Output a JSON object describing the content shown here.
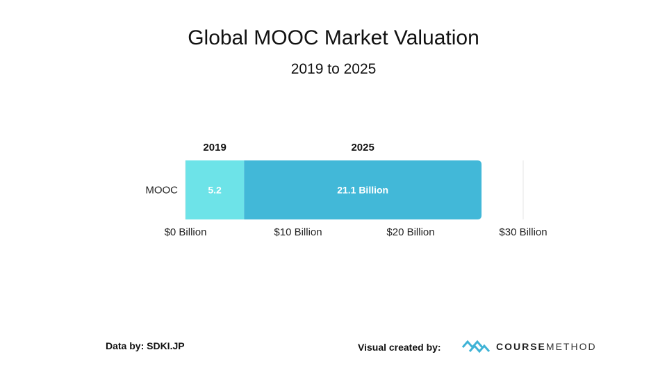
{
  "title": "Global MOOC Market Valuation",
  "subtitle": "2019 to 2025",
  "colors": {
    "series_2019": "#6de3e8",
    "series_2025": "#42b8d8",
    "grid": "#e6e6e6",
    "logo_accent": "#3fb3d6"
  },
  "chart_data": {
    "type": "bar",
    "orientation": "horizontal",
    "stacked": true,
    "categories": [
      "MOOC"
    ],
    "series": [
      {
        "name": "2019",
        "values": [
          5.2
        ],
        "label": "5.2"
      },
      {
        "name": "2025",
        "values": [
          21.1
        ],
        "label": "21.1 Billion"
      }
    ],
    "xlim": [
      0,
      30
    ],
    "x_ticks": [
      0,
      10,
      20,
      30
    ],
    "x_tick_labels": [
      "$0 Billion",
      "$10 Billion",
      "$20 Billion",
      "$30 Billion"
    ],
    "legend": "above-bars",
    "grid": true
  },
  "footer": {
    "data_source": "Data by: SDKI.JP",
    "credit": "Visual created by:",
    "logo_icon": "coursemethod-logo-icon",
    "logo_bold": "COURSE",
    "logo_light": "METHOD"
  }
}
